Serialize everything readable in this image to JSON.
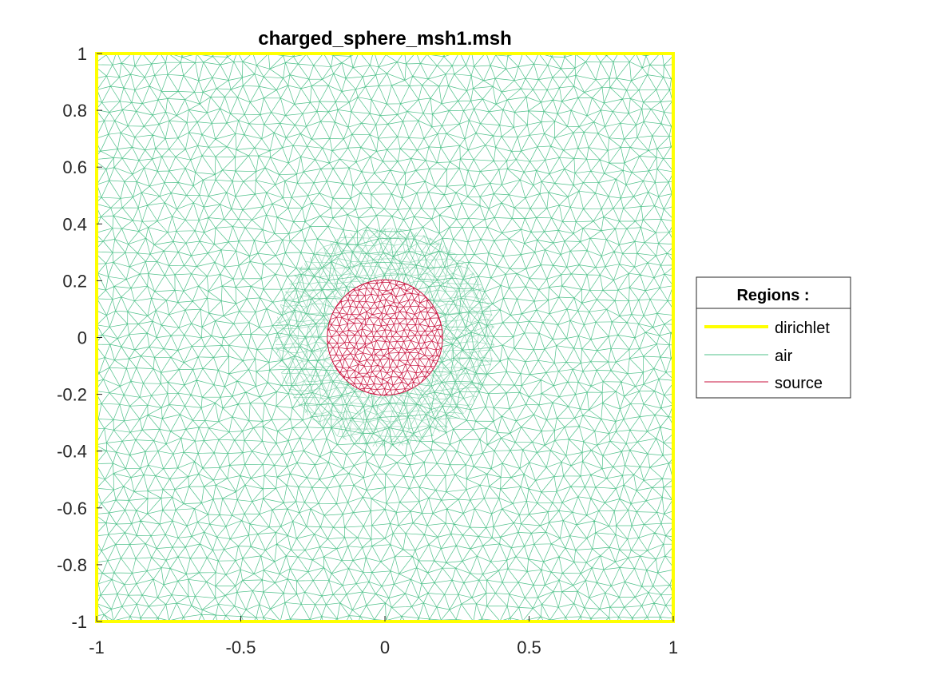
{
  "chart_data": {
    "type": "mesh",
    "title": "charged_sphere_msh1.msh",
    "xlim": [
      -1,
      1
    ],
    "ylim": [
      -1,
      1
    ],
    "xticks": [
      -1,
      -0.5,
      0,
      0.5,
      1
    ],
    "yticks": [
      -1,
      -0.8,
      -0.6,
      -0.4,
      -0.2,
      0,
      0.2,
      0.4,
      0.6,
      0.8,
      1
    ],
    "xtick_labels": [
      "-1",
      "-0.5",
      "0",
      "0.5",
      "1"
    ],
    "ytick_labels": [
      "-1",
      "-0.8",
      "-0.6",
      "-0.4",
      "-0.2",
      "0",
      "0.2",
      "0.4",
      "0.6",
      "0.8",
      "1"
    ],
    "grid": false,
    "legend": {
      "title": "Regions :",
      "placement": "outside-right",
      "entries": [
        "dirichlet",
        "air",
        "source"
      ]
    },
    "regions": [
      {
        "name": "dirichlet",
        "kind": "boundary",
        "shape": "square",
        "x": [
          -1,
          1
        ],
        "y": [
          -1,
          1
        ],
        "color": "#ffff00"
      },
      {
        "name": "air",
        "kind": "mesh",
        "shape": "square",
        "x": [
          -1,
          1
        ],
        "y": [
          -1,
          1
        ],
        "color": "#4fc18a"
      },
      {
        "name": "source",
        "kind": "mesh",
        "shape": "circle",
        "center": [
          0,
          0
        ],
        "radius": 0.2,
        "color": "#c8103c"
      }
    ]
  }
}
